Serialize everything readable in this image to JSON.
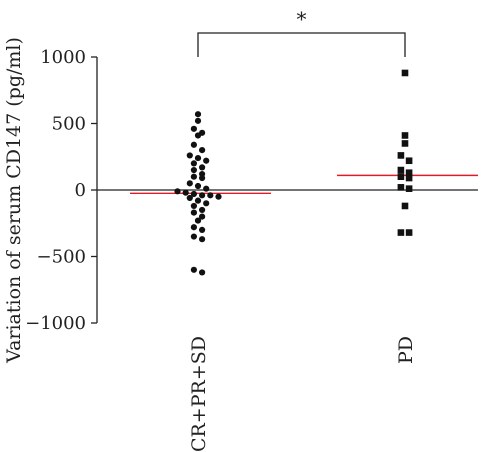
{
  "chart_data": {
    "type": "scatter",
    "title": "",
    "xlabel": "",
    "ylabel": "Variation of serum CD147 (pg/ml)",
    "ylim": [
      -1000,
      1000
    ],
    "yticks": [
      "1000",
      "500",
      "0",
      "−500",
      "−1000"
    ],
    "ytick_values": [
      1000,
      500,
      0,
      -500,
      -1000
    ],
    "categories": [
      "CR+PR+SD",
      "PD"
    ],
    "series": [
      {
        "category": "CR+PR+SD",
        "marker": "circle",
        "median": -25,
        "values": [
          570,
          520,
          460,
          430,
          410,
          340,
          300,
          260,
          240,
          220,
          200,
          170,
          150,
          120,
          100,
          90,
          50,
          30,
          10,
          -10,
          -20,
          -30,
          -40,
          -40,
          -50,
          -60,
          -80,
          -100,
          -120,
          -150,
          -170,
          -200,
          -230,
          -280,
          -300,
          -350,
          -370,
          -600,
          -620
        ]
      },
      {
        "category": "PD",
        "marker": "square",
        "median": 110,
        "values": [
          880,
          410,
          350,
          260,
          220,
          150,
          130,
          100,
          90,
          20,
          10,
          -120,
          -320,
          -320
        ]
      }
    ],
    "significance": {
      "label": "*",
      "between": [
        "CR+PR+SD",
        "PD"
      ]
    },
    "colors": {
      "points": "#111111",
      "median_line": "#e01c2a",
      "axis": "#222222"
    },
    "grid": false,
    "legend": "none"
  }
}
